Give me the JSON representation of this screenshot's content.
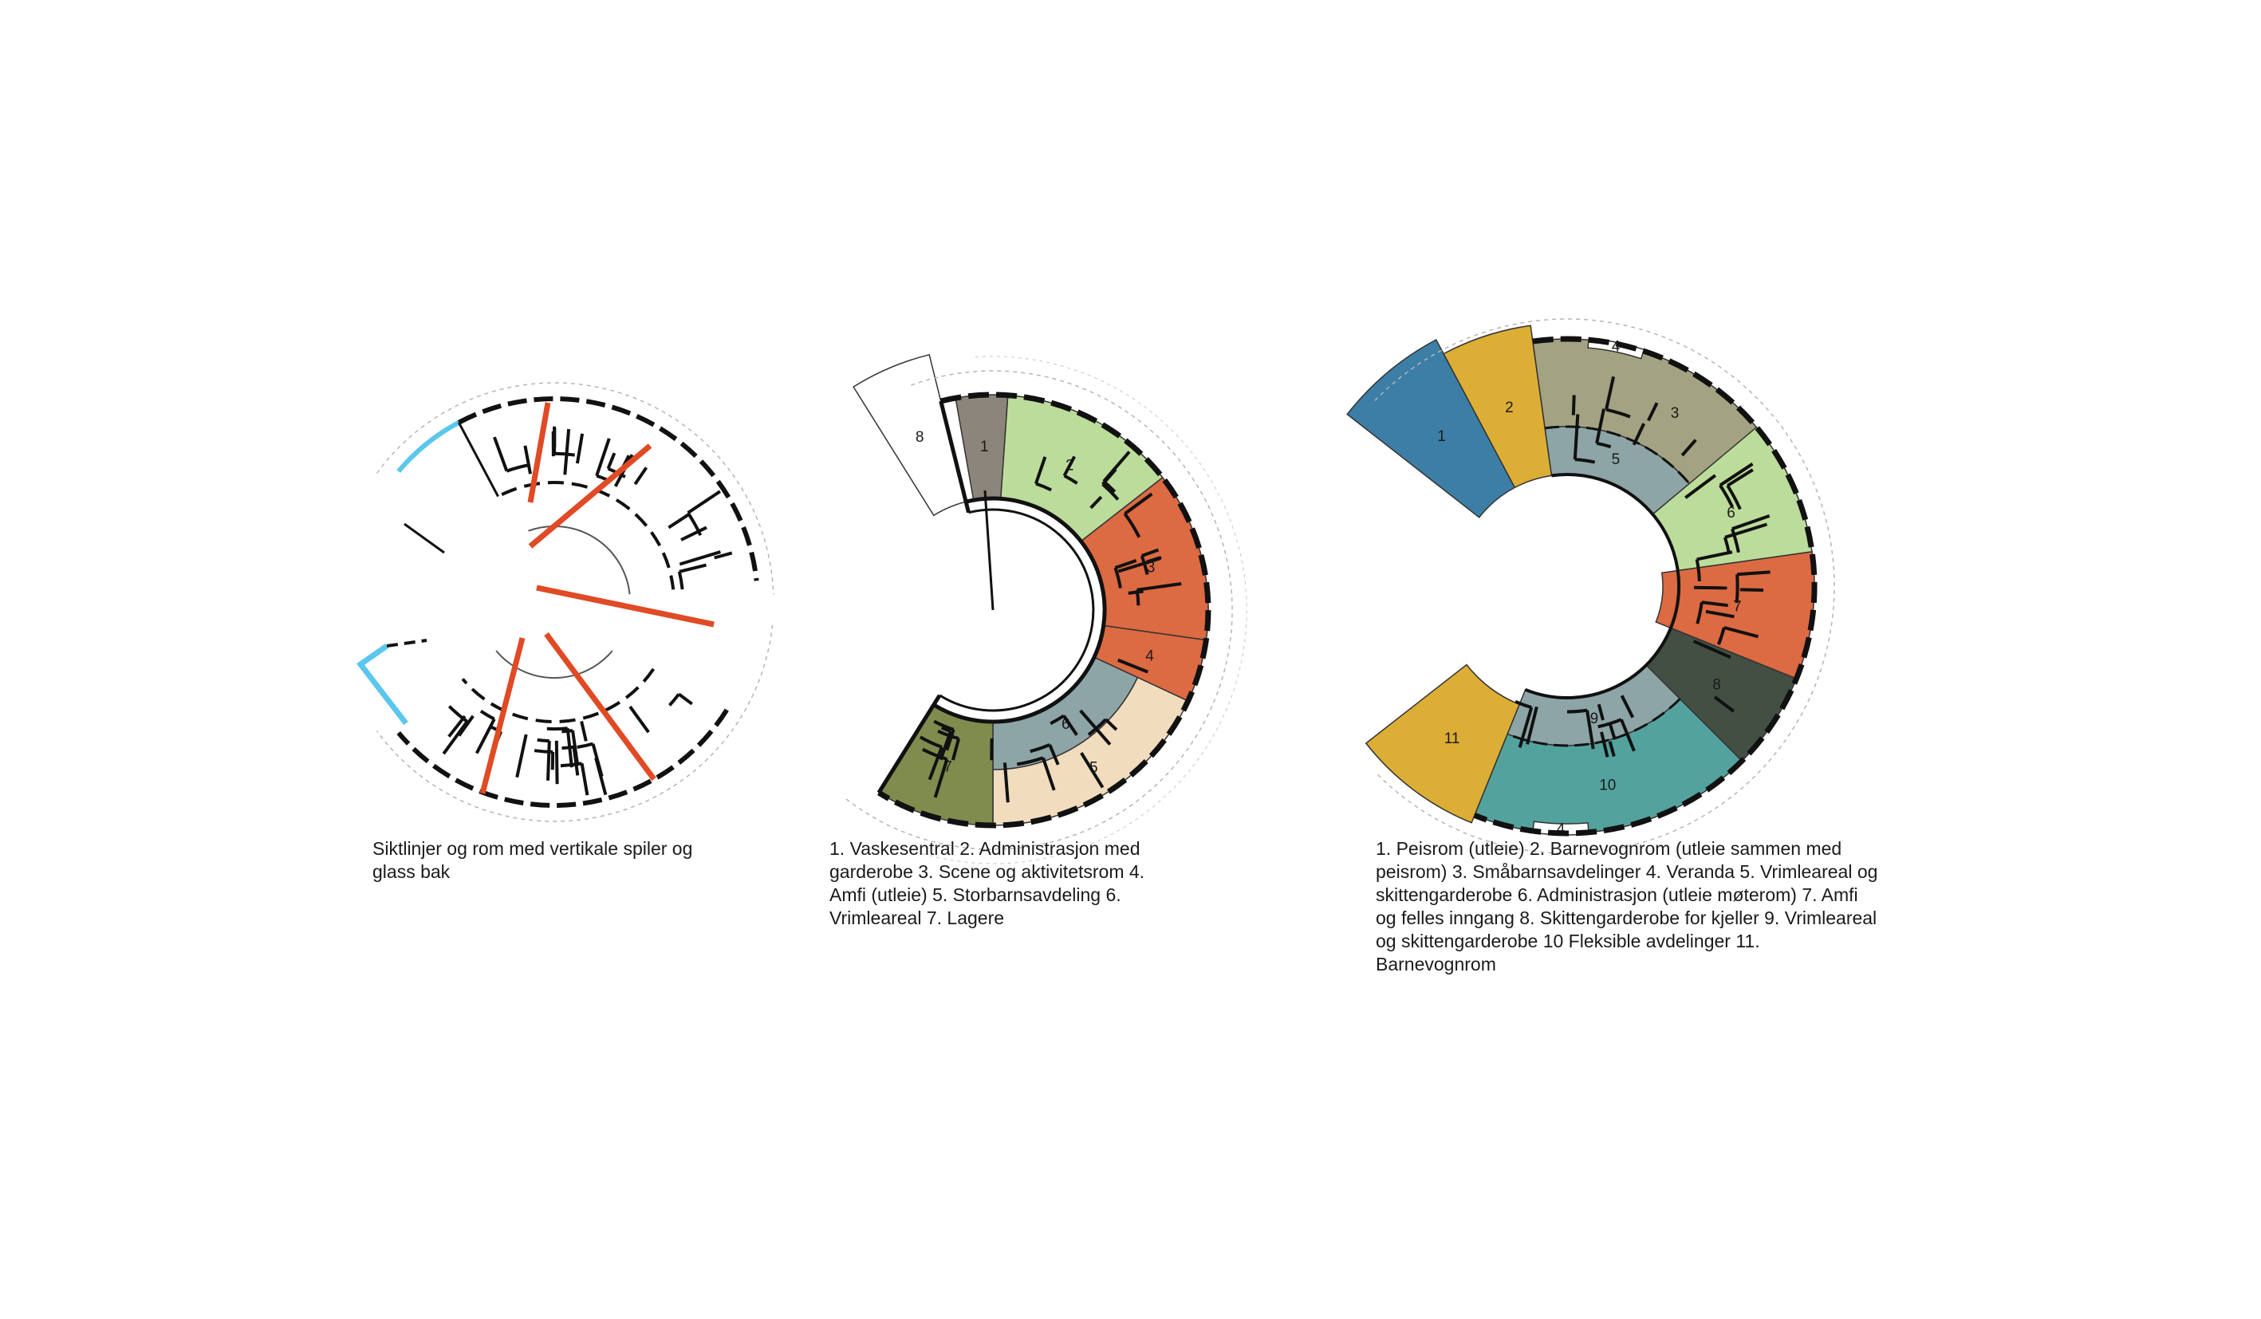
{
  "captions": {
    "plan1": "Siktlinjer og rom med vertikale spiler og glass bak",
    "plan2": "1. Vaskesentral 2. Administrasjon med garderobe 3. Scene og aktivitetsrom 4. Amfi (utleie) 5. Storbarnsavdeling 6. Vrimleareal 7. Lagere",
    "plan3": "1. Peisrom (utleie) 2. Barnevognrom (utleie sammen med peisrom) 3. Småbarnsavdelinger 4. Veranda 5. Vrimleareal og skittengarderobe 6. Administrasjon (utleie møterom) 7. Amfi og felles inngang 8. Skittengarderobe for kjeller 9. Vrimleareal og skittengarderobe 10 Fleksible avdelinger 11. Barnevognrom"
  },
  "plan2_rooms": [
    {
      "label": "1",
      "color": "#8c857b",
      "a0": -100,
      "a1": -86,
      "r0": 140,
      "r1": 270
    },
    {
      "label": "2",
      "color": "#bcdc9b",
      "a0": -86,
      "a1": -38,
      "r0": 140,
      "r1": 270
    },
    {
      "label": "3",
      "color": "#dc6a42",
      "a0": -38,
      "a1": 8,
      "r0": 140,
      "r1": 270
    },
    {
      "label": "4",
      "color": "#dc6a42",
      "a0": 8,
      "a1": 25,
      "r0": 140,
      "r1": 270
    },
    {
      "label": "5",
      "color": "#f1dcbd",
      "a0": 25,
      "a1": 90,
      "r0": 200,
      "r1": 270
    },
    {
      "label": "6",
      "color": "#8ea5a7",
      "a0": 25,
      "a1": 90,
      "r0": 140,
      "r1": 200
    },
    {
      "label": "7",
      "color": "#7f8c4e",
      "a0": 90,
      "a1": 122,
      "r0": 140,
      "r1": 270
    },
    {
      "label": "8",
      "color": "#ffffff",
      "a0": -122,
      "a1": -104,
      "r0": 140,
      "r1": 330
    }
  ],
  "plan3_rooms": [
    {
      "label": "1",
      "color": "#3c7ea6",
      "a0": -142,
      "a1": -118,
      "r0": 140,
      "r1": 350
    },
    {
      "label": "2",
      "color": "#dcae35",
      "a0": -118,
      "a1": -98,
      "r0": 140,
      "r1": 330
    },
    {
      "label": "3",
      "color": "#a3a383",
      "a0": -98,
      "a1": -18,
      "r0": 200,
      "r1": 310
    },
    {
      "label": "4",
      "color": "#ffffff",
      "a0": -85,
      "a1": -72,
      "r0": 300,
      "r1": 312
    },
    {
      "label": "5",
      "color": "#8ea5a7",
      "a0": -98,
      "a1": -40,
      "r0": 140,
      "r1": 200
    },
    {
      "label": "6",
      "color": "#bcdc9b",
      "a0": -40,
      "a1": -8,
      "r0": 140,
      "r1": 310
    },
    {
      "label": "7",
      "color": "#dc6a42",
      "a0": -8,
      "a1": 22,
      "r0": 120,
      "r1": 310
    },
    {
      "label": "8",
      "color": "#434f43",
      "a0": 22,
      "a1": 45,
      "r0": 140,
      "r1": 310
    },
    {
      "label": "9",
      "color": "#8ea5a7",
      "a0": 45,
      "a1": 112,
      "r0": 140,
      "r1": 200
    },
    {
      "label": "10",
      "color": "#54a29e",
      "a0": 45,
      "a1": 112,
      "r0": 200,
      "r1": 310
    },
    {
      "label": "4",
      "color": "#ffffff",
      "a0": 85,
      "a1": 98,
      "r0": 298,
      "r1": 312
    },
    {
      "label": "11",
      "color": "#dcae35",
      "a0": 112,
      "a1": 142,
      "r0": 160,
      "r1": 320
    }
  ],
  "palette": {
    "sightline": "#e04a24",
    "glass": "#5bc7ec",
    "wall": "#111111"
  }
}
